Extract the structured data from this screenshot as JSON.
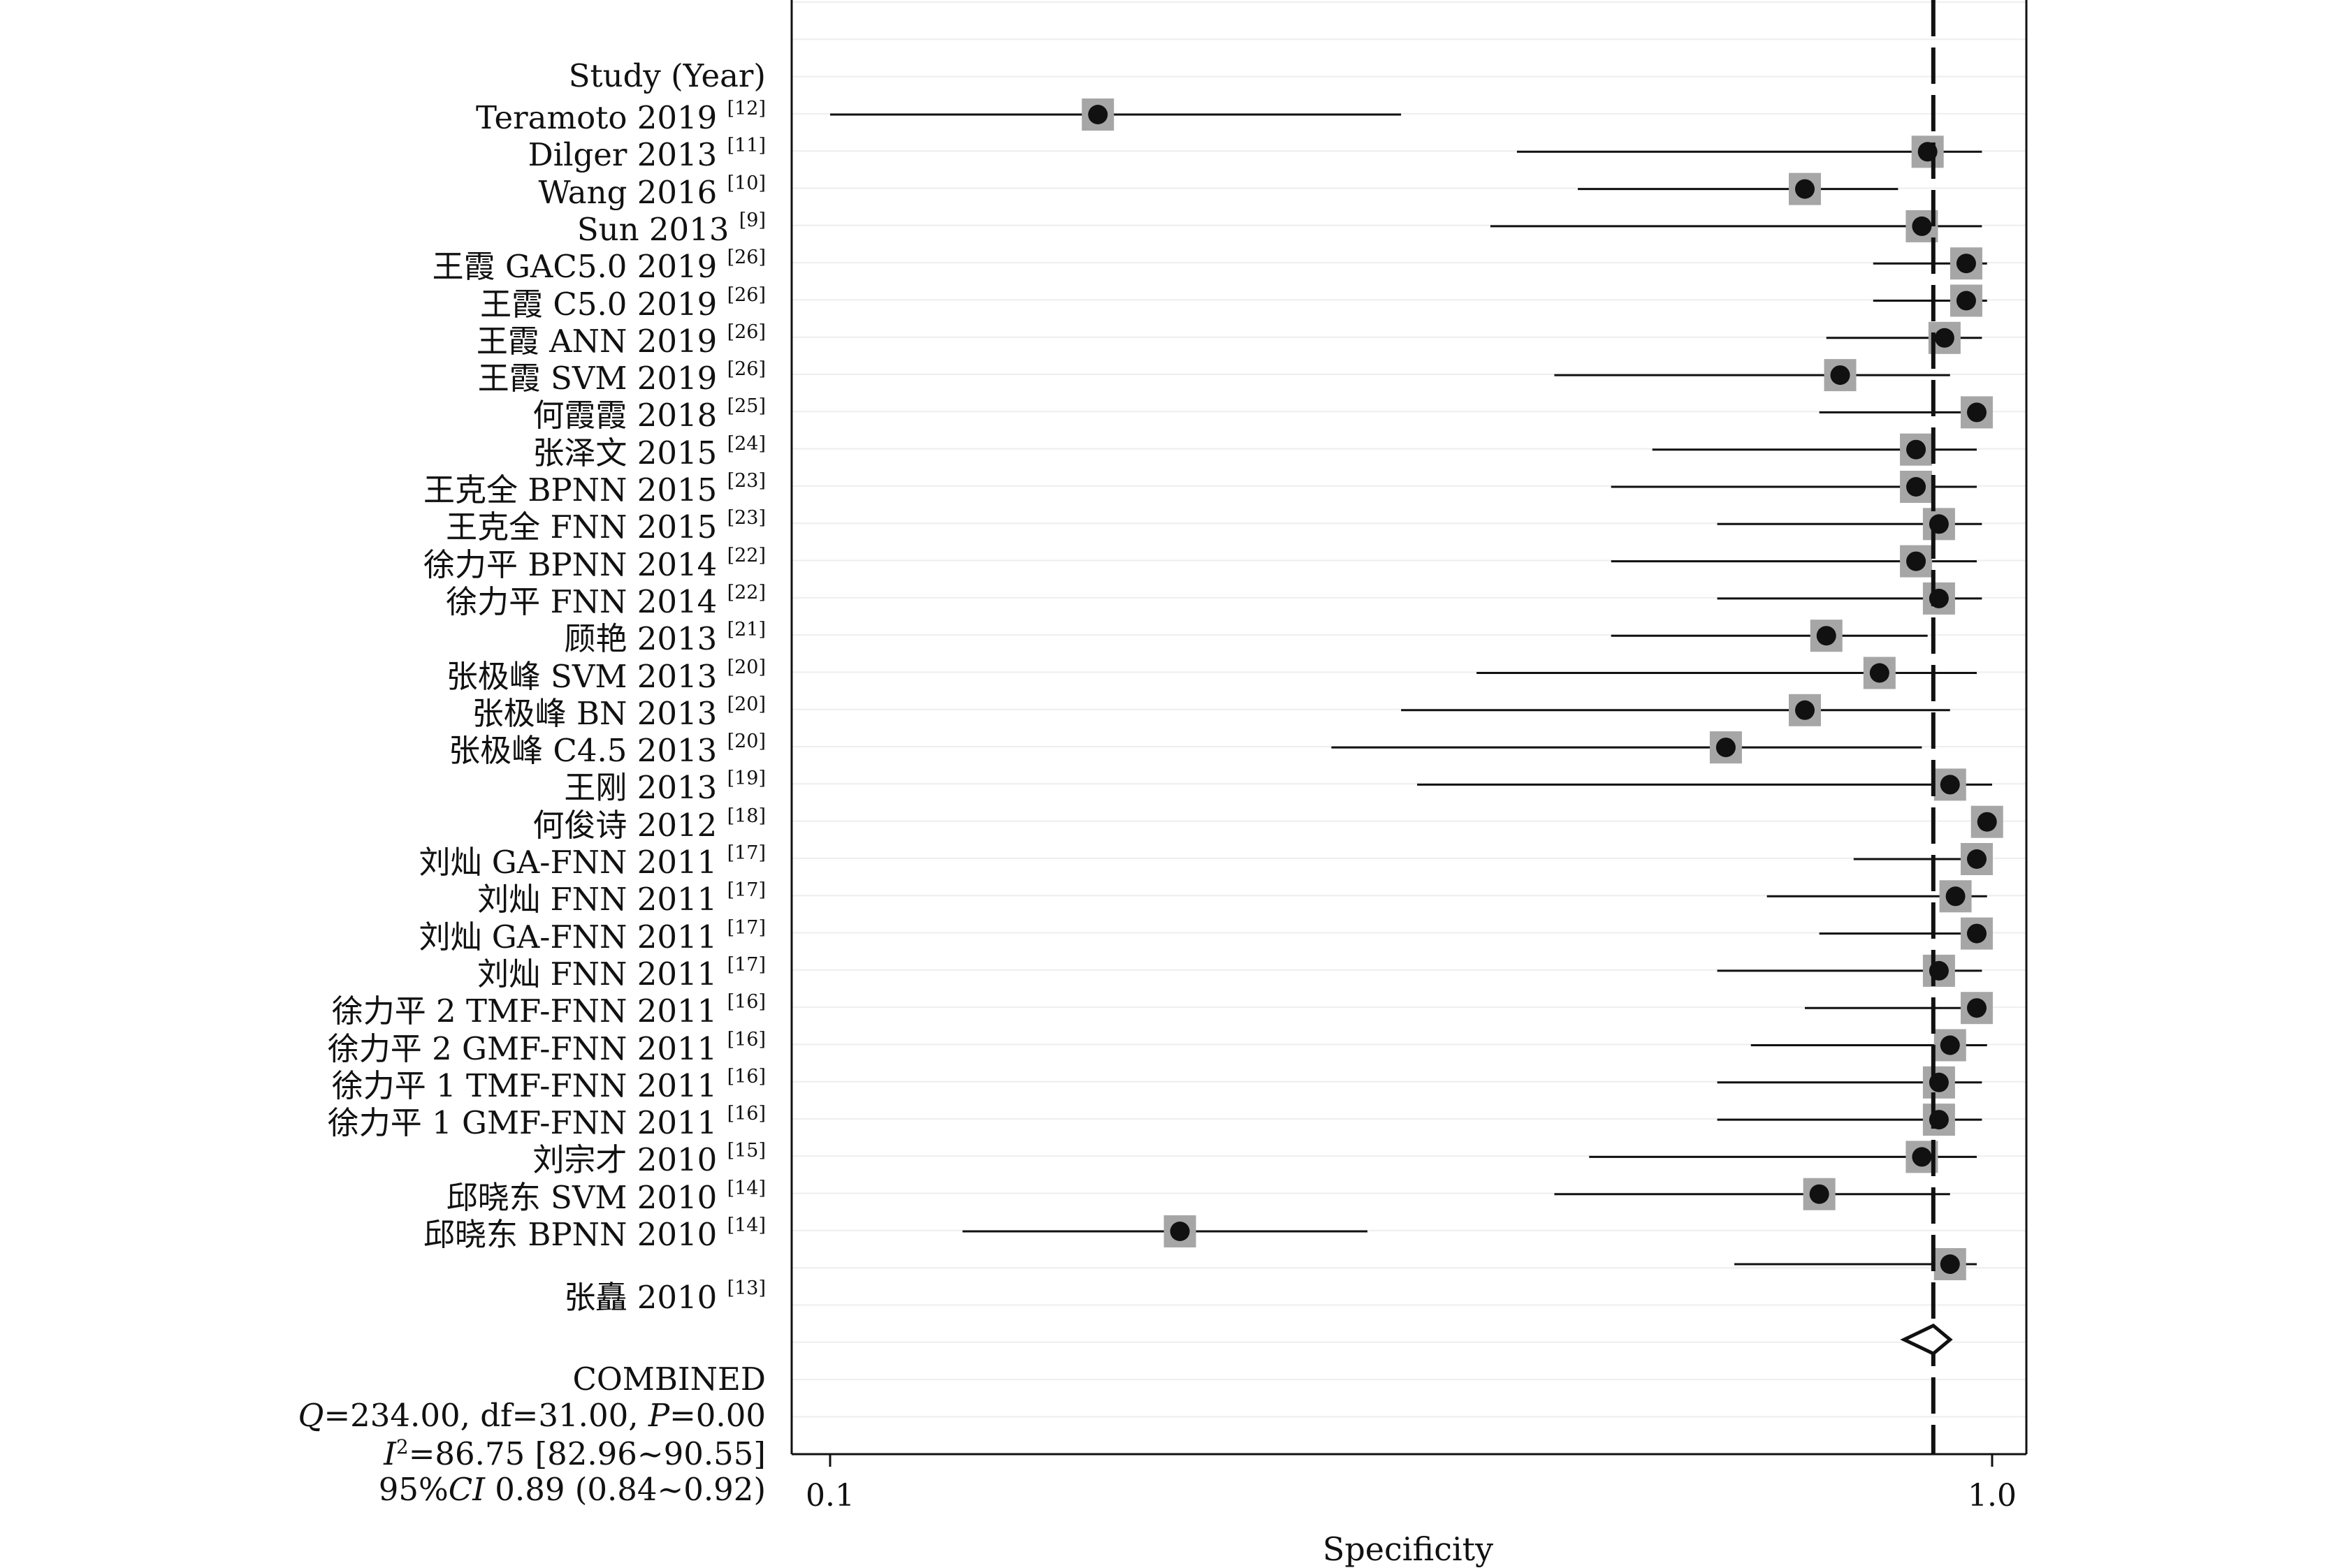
{
  "chart_data": {
    "type": "forest",
    "xlabel": "Specificity",
    "x_scale": "log",
    "xlim": [
      0.1,
      1.0
    ],
    "x_ticks": [
      "0.1",
      "1.0"
    ],
    "reference_line": 0.89,
    "header": "Study (Year)",
    "studies": [
      {
        "name": "Teramoto 2019",
        "ref": "[12]",
        "est": 0.17,
        "lo": 0.1,
        "hi": 0.31
      },
      {
        "name": "Dilger 2013",
        "ref": "[11]",
        "est": 0.88,
        "lo": 0.39,
        "hi": 0.98
      },
      {
        "name": "Wang 2016",
        "ref": "[10]",
        "est": 0.69,
        "lo": 0.44,
        "hi": 0.83
      },
      {
        "name": "Sun 2013",
        "ref": "[9]",
        "est": 0.87,
        "lo": 0.37,
        "hi": 0.98
      },
      {
        "name": "王霞 GAC5.0 2019",
        "ref": "[26]",
        "est": 0.95,
        "lo": 0.79,
        "hi": 0.99
      },
      {
        "name": "王霞 C5.0 2019",
        "ref": "[26]",
        "est": 0.95,
        "lo": 0.79,
        "hi": 0.99
      },
      {
        "name": "王霞 ANN 2019",
        "ref": "[26]",
        "est": 0.91,
        "lo": 0.72,
        "hi": 0.98
      },
      {
        "name": "王霞 SVM 2019",
        "ref": "[26]",
        "est": 0.74,
        "lo": 0.42,
        "hi": 0.92
      },
      {
        "name": "何霞霞 2018",
        "ref": "[25]",
        "est": 0.97,
        "lo": 0.71,
        "hi": 1.0
      },
      {
        "name": "张泽文 2015",
        "ref": "[24]",
        "est": 0.86,
        "lo": 0.51,
        "hi": 0.97
      },
      {
        "name": "王克全 BPNN 2015",
        "ref": "[23]",
        "est": 0.86,
        "lo": 0.47,
        "hi": 0.97
      },
      {
        "name": "王克全 FNN 2015",
        "ref": "[23]",
        "est": 0.9,
        "lo": 0.58,
        "hi": 0.98
      },
      {
        "name": "徐力平 BPNN 2014",
        "ref": "[22]",
        "est": 0.86,
        "lo": 0.47,
        "hi": 0.97
      },
      {
        "name": "徐力平 FNN 2014",
        "ref": "[22]",
        "est": 0.9,
        "lo": 0.58,
        "hi": 0.98
      },
      {
        "name": "顾艳 2013",
        "ref": "[21]",
        "est": 0.72,
        "lo": 0.47,
        "hi": 0.88
      },
      {
        "name": "张极峰 SVM 2013",
        "ref": "[20]",
        "est": 0.8,
        "lo": 0.36,
        "hi": 0.97
      },
      {
        "name": "张极峰 BN 2013",
        "ref": "[20]",
        "est": 0.69,
        "lo": 0.31,
        "hi": 0.92
      },
      {
        "name": "张极峰 C4.5 2013",
        "ref": "[20]",
        "est": 0.59,
        "lo": 0.27,
        "hi": 0.87
      },
      {
        "name": "王刚 2013",
        "ref": "[19]",
        "est": 0.92,
        "lo": 0.32,
        "hi": 1.0
      },
      {
        "name": "何俊诗 2012",
        "ref": "[18]",
        "est": 0.99,
        "lo": 0.96,
        "hi": 1.0
      },
      {
        "name": "刘灿 GA-FNN 2011",
        "ref": "[17]",
        "est": 0.97,
        "lo": 0.76,
        "hi": 1.0
      },
      {
        "name": "刘灿 FNN 2011",
        "ref": "[17]",
        "est": 0.93,
        "lo": 0.64,
        "hi": 0.99
      },
      {
        "name": "刘灿 GA-FNN 2011",
        "ref": "[17]",
        "est": 0.97,
        "lo": 0.71,
        "hi": 1.0
      },
      {
        "name": "刘灿 FNN 2011",
        "ref": "[17]",
        "est": 0.9,
        "lo": 0.58,
        "hi": 0.98
      },
      {
        "name": "徐力平 2 TMF-FNN 2011",
        "ref": "[16]",
        "est": 0.97,
        "lo": 0.69,
        "hi": 1.0
      },
      {
        "name": "徐力平 2 GMF-FNN 2011",
        "ref": "[16]",
        "est": 0.92,
        "lo": 0.62,
        "hi": 0.99
      },
      {
        "name": "徐力平 1 TMF-FNN 2011",
        "ref": "[16]",
        "est": 0.9,
        "lo": 0.58,
        "hi": 0.98
      },
      {
        "name": "徐力平 1 GMF-FNN 2011",
        "ref": "[16]",
        "est": 0.9,
        "lo": 0.58,
        "hi": 0.98
      },
      {
        "name": "刘宗才 2010",
        "ref": "[15]",
        "est": 0.87,
        "lo": 0.45,
        "hi": 0.97
      },
      {
        "name": "邱晓东 SVM 2010",
        "ref": "[14]",
        "est": 0.71,
        "lo": 0.42,
        "hi": 0.92
      },
      {
        "name": "邱晓东 BPNN 2010",
        "ref": "[14]",
        "est": 0.2,
        "lo": 0.13,
        "hi": 0.29
      },
      {
        "name": "张矗 2010",
        "ref": "[13]",
        "est": 0.92,
        "lo": 0.6,
        "hi": 0.97
      }
    ],
    "combined": {
      "label": "COMBINED",
      "est": 0.89,
      "lo": 0.84,
      "hi": 0.92
    },
    "stats": {
      "q": "Q",
      "q_rest": "=234.00, df=31.00, ",
      "p": "P",
      "p_rest": "=0.00",
      "i2": "I",
      "i2_rest": "=86.75 [82.96~90.55]",
      "ci_pre": "95%",
      "ci": "CI",
      "ci_rest": " 0.89 (0.84~0.92)"
    }
  }
}
